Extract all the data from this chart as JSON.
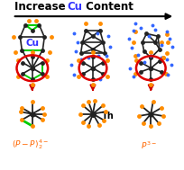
{
  "title_text": "Increase ",
  "title_cu": "Cu",
  "title_end": " Content",
  "title_fontsize": 10,
  "bg_color": "#ffffff",
  "arrow_color": "#000000",
  "black_node_color": "#222222",
  "orange_node_color": "#FF8C00",
  "green_edge_color": "#00CC00",
  "blue_dot_color": "#3366FF",
  "red_circle_color": "#DD0000",
  "red_arrow_color": "#CC0000",
  "cu_text_color": "#3333FF",
  "label_color_pp": "#FF6600",
  "label_color_p": "#FF6600",
  "th_color": "#111111"
}
